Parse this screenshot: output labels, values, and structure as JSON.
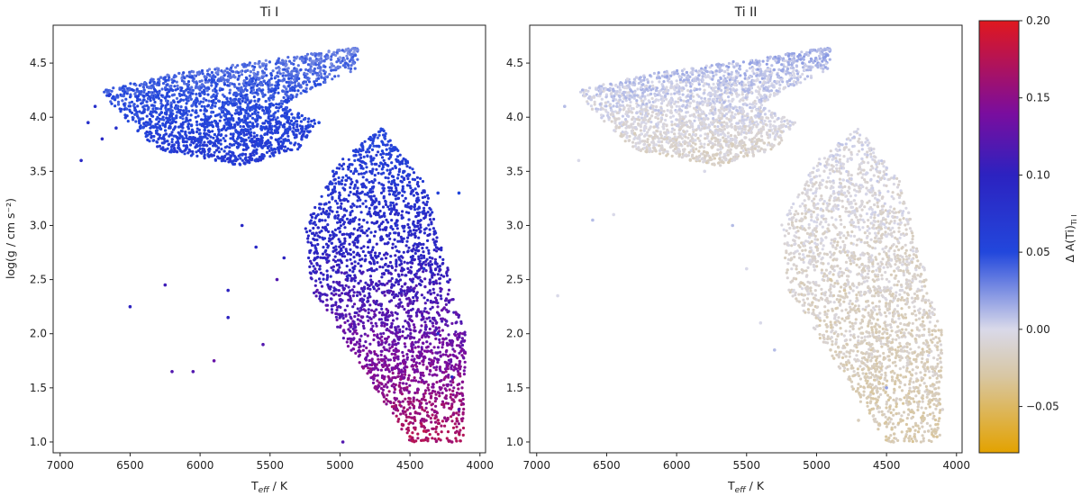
{
  "figure": {
    "colorbar": {
      "label_main": "Δ A(Ti)",
      "label_sub": "Ti I",
      "range": [
        -0.08,
        0.2
      ],
      "ticks": [
        "0.20",
        "0.15",
        "0.10",
        "0.05",
        "0.00",
        "−0.05"
      ],
      "tick_values": [
        0.2,
        0.15,
        0.1,
        0.05,
        0.0,
        -0.05
      ],
      "colormap_stops": [
        {
          "value": -0.08,
          "color": "#e3a200"
        },
        {
          "value": -0.03,
          "color": "#d8c7a4"
        },
        {
          "value": 0.0,
          "color": "#d9d9e9"
        },
        {
          "value": 0.05,
          "color": "#2247dc"
        },
        {
          "value": 0.1,
          "color": "#2c22c0"
        },
        {
          "value": 0.14,
          "color": "#7a0d9e"
        },
        {
          "value": 0.2,
          "color": "#e0181e"
        }
      ]
    }
  },
  "chart_data": [
    {
      "type": "scatter",
      "title": "Ti I",
      "xlabel_main": "T",
      "xlabel_sub": "eff",
      "xlabel_tail": " / K",
      "ylabel": "log(g / cm s⁻²)",
      "xlim": [
        7050,
        3960
      ],
      "ylim": [
        4.85,
        0.9
      ],
      "x_ticks": [
        "7000",
        "6500",
        "6000",
        "5500",
        "5000",
        "4500",
        "4000"
      ],
      "x_tick_values": [
        7000,
        6500,
        6000,
        5500,
        5000,
        4500,
        4000
      ],
      "y_ticks": [
        "1.0",
        "1.5",
        "2.0",
        "2.5",
        "3.0",
        "3.5",
        "4.0",
        "4.5"
      ],
      "y_tick_values": [
        1.0,
        1.5,
        2.0,
        2.5,
        3.0,
        3.5,
        4.0,
        4.5
      ],
      "show_y_label": true,
      "color_quantity": "Δ A(Ti) Ti I",
      "color_trend": "blue (~0.05) on dwarfs, rising to red (~0.18) for cool giants near log g 1.0",
      "points": [
        [
          6850,
          3.6,
          0.09
        ],
        [
          6800,
          3.95,
          0.08
        ],
        [
          6750,
          4.1,
          0.08
        ],
        [
          6700,
          3.8,
          0.09
        ],
        [
          6650,
          4.2,
          0.07
        ],
        [
          6600,
          3.9,
          0.08
        ],
        [
          6500,
          2.25,
          0.1
        ],
        [
          6250,
          2.45,
          0.11
        ],
        [
          6200,
          1.65,
          0.12
        ],
        [
          6050,
          1.65,
          0.12
        ],
        [
          5900,
          1.75,
          0.13
        ],
        [
          5800,
          2.15,
          0.1
        ],
        [
          5800,
          2.4,
          0.1
        ],
        [
          5700,
          3.0,
          0.09
        ],
        [
          5600,
          2.8,
          0.09
        ],
        [
          5550,
          1.9,
          0.12
        ],
        [
          5450,
          2.5,
          0.12
        ],
        [
          5400,
          2.7,
          0.1
        ],
        [
          4980,
          1.0,
          0.12
        ],
        [
          4750,
          1.5,
          0.15
        ],
        [
          4500,
          1.05,
          0.18
        ],
        [
          4400,
          1.1,
          0.18
        ],
        [
          4300,
          1.2,
          0.17
        ],
        [
          4200,
          1.0,
          0.16
        ],
        [
          4150,
          1.3,
          0.12
        ],
        [
          4500,
          1.4,
          0.16
        ],
        [
          4600,
          1.9,
          0.13
        ],
        [
          4700,
          2.1,
          0.12
        ],
        [
          4800,
          2.3,
          0.11
        ],
        [
          4900,
          2.6,
          0.1
        ],
        [
          5000,
          2.85,
          0.08
        ],
        [
          5100,
          3.2,
          0.07
        ],
        [
          5050,
          3.5,
          0.06
        ],
        [
          4800,
          3.3,
          0.06
        ],
        [
          4600,
          3.0,
          0.07
        ],
        [
          4400,
          2.6,
          0.07
        ],
        [
          4300,
          2.0,
          0.08
        ],
        [
          4200,
          1.6,
          0.09
        ],
        [
          4300,
          3.3,
          0.06
        ],
        [
          4150,
          3.3,
          0.05
        ],
        [
          5600,
          3.75,
          0.06
        ],
        [
          5800,
          3.9,
          0.05
        ],
        [
          6000,
          3.85,
          0.05
        ],
        [
          6200,
          3.95,
          0.06
        ],
        [
          6400,
          4.05,
          0.06
        ],
        [
          6300,
          4.2,
          0.05
        ],
        [
          6000,
          4.2,
          0.05
        ],
        [
          5700,
          4.25,
          0.04
        ],
        [
          5400,
          4.35,
          0.04
        ],
        [
          5200,
          4.5,
          0.03
        ],
        [
          5000,
          4.55,
          0.02
        ],
        [
          4900,
          4.6,
          0.02
        ],
        [
          5500,
          4.1,
          0.05
        ],
        [
          5300,
          4.0,
          0.05
        ],
        [
          5150,
          3.95,
          0.05
        ]
      ],
      "regions": [
        {
          "kind": "giant-branch",
          "path": [
            [
              4120,
              1.0
            ],
            [
              4500,
              1.0
            ],
            [
              4950,
              1.9
            ],
            [
              5200,
              2.4
            ],
            [
              5250,
              3.0
            ],
            [
              5000,
              3.6
            ],
            [
              4700,
              3.9
            ],
            [
              4400,
              3.4
            ],
            [
              4100,
              2.0
            ]
          ],
          "color_top": 0.17,
          "color_bottom": 0.05,
          "density": "high"
        },
        {
          "kind": "turnoff-dwarfs",
          "path": [
            [
              6600,
              4.05
            ],
            [
              6300,
              3.7
            ],
            [
              5700,
              3.55
            ],
            [
              5300,
              3.7
            ],
            [
              5150,
              3.95
            ],
            [
              5400,
              4.1
            ],
            [
              5300,
              4.2
            ],
            [
              4870,
              4.45
            ],
            [
              4870,
              4.65
            ],
            [
              5400,
              4.55
            ],
            [
              6200,
              4.4
            ],
            [
              6700,
              4.25
            ]
          ],
          "color_top": 0.07,
          "color_bottom": 0.03,
          "density": "high"
        }
      ]
    },
    {
      "type": "scatter",
      "title": "Ti II",
      "xlabel_main": "T",
      "xlabel_sub": "eff",
      "xlabel_tail": " / K",
      "ylabel": "",
      "xlim": [
        7050,
        3960
      ],
      "ylim": [
        4.85,
        0.9
      ],
      "x_ticks": [
        "7000",
        "6500",
        "6000",
        "5500",
        "5000",
        "4500",
        "4000"
      ],
      "x_tick_values": [
        7000,
        6500,
        6000,
        5500,
        5000,
        4500,
        4000
      ],
      "y_ticks": [
        "1.0",
        "1.5",
        "2.0",
        "2.5",
        "3.0",
        "3.5",
        "4.0",
        "4.5"
      ],
      "y_tick_values": [
        1.0,
        1.5,
        2.0,
        2.5,
        3.0,
        3.5,
        4.0,
        4.5
      ],
      "show_y_label": false,
      "color_quantity": "Δ A(Ti) Ti I",
      "color_trend": "near zero everywhere (lavender-grey), slightly negative tan in giant branch and subgiants",
      "points": [
        [
          6850,
          2.35,
          0.0
        ],
        [
          6800,
          4.1,
          0.01
        ],
        [
          6700,
          3.6,
          0.0
        ],
        [
          6600,
          3.05,
          0.01
        ],
        [
          6450,
          3.1,
          0.0
        ],
        [
          6300,
          3.85,
          -0.02
        ],
        [
          6100,
          3.7,
          -0.01
        ],
        [
          5800,
          3.5,
          0.0
        ],
        [
          5600,
          3.0,
          0.01
        ],
        [
          5500,
          2.6,
          0.0
        ],
        [
          5400,
          2.1,
          0.0
        ],
        [
          5300,
          1.85,
          0.01
        ],
        [
          4900,
          1.85,
          -0.02
        ],
        [
          4700,
          1.2,
          -0.02
        ],
        [
          4450,
          1.0,
          -0.02
        ],
        [
          4300,
          1.05,
          -0.03
        ],
        [
          4200,
          1.1,
          -0.02
        ],
        [
          4100,
          1.3,
          -0.01
        ],
        [
          4500,
          1.5,
          0.02
        ],
        [
          4800,
          2.4,
          -0.03
        ],
        [
          4900,
          2.5,
          -0.03
        ],
        [
          5000,
          2.8,
          -0.02
        ],
        [
          5100,
          3.3,
          -0.01
        ],
        [
          4800,
          3.3,
          0.0
        ],
        [
          4500,
          2.9,
          0.0
        ],
        [
          4300,
          2.3,
          -0.01
        ],
        [
          4200,
          1.8,
          0.0
        ],
        [
          5600,
          3.75,
          -0.02
        ],
        [
          5800,
          3.9,
          -0.01
        ],
        [
          6000,
          4.05,
          0.0
        ],
        [
          6300,
          4.2,
          0.01
        ],
        [
          5700,
          4.3,
          0.01
        ],
        [
          5400,
          4.4,
          0.01
        ],
        [
          5100,
          4.5,
          0.02
        ],
        [
          4950,
          4.55,
          0.02
        ]
      ],
      "regions": [
        {
          "kind": "giant-branch",
          "path": [
            [
              4120,
              1.0
            ],
            [
              4500,
              1.0
            ],
            [
              4950,
              1.9
            ],
            [
              5200,
              2.4
            ],
            [
              5250,
              3.0
            ],
            [
              5000,
              3.6
            ],
            [
              4700,
              3.9
            ],
            [
              4400,
              3.4
            ],
            [
              4100,
              2.0
            ]
          ],
          "color_top": -0.025,
          "color_bottom": 0.0,
          "density": "high"
        },
        {
          "kind": "turnoff-dwarfs",
          "path": [
            [
              6600,
              4.05
            ],
            [
              6300,
              3.7
            ],
            [
              5700,
              3.55
            ],
            [
              5300,
              3.7
            ],
            [
              5150,
              3.95
            ],
            [
              5400,
              4.1
            ],
            [
              5300,
              4.2
            ],
            [
              4900,
              4.45
            ],
            [
              4900,
              4.65
            ],
            [
              5400,
              4.55
            ],
            [
              6200,
              4.4
            ],
            [
              6700,
              4.25
            ]
          ],
          "color_top": -0.015,
          "color_bottom": 0.015,
          "density": "high"
        }
      ]
    }
  ]
}
